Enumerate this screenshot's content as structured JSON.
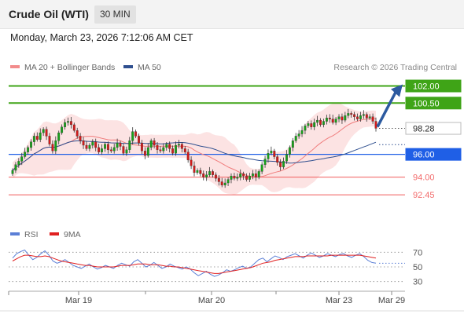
{
  "header": {
    "instrument": "Crude Oil (WTI)",
    "timeframe": "30 MIN"
  },
  "datetime": "Monday, March 23, 2026 7:12:06 AM CET",
  "legend": {
    "bollinger_label": "MA 20 + Bollinger Bands",
    "bollinger_color": "#f28c8c",
    "ma50_label": "MA 50",
    "ma50_color": "#2f4f8f",
    "rsi_label": "RSI",
    "rsi_color": "#5b7fd6",
    "rsi_ma_label": "9MA",
    "rsi_ma_color": "#e02020"
  },
  "credit": "Research © 2026 Trading Central",
  "chart_data": {
    "type": "candlestick",
    "x_ticks": [
      "Mar 19",
      "Mar 20",
      "Mar 23",
      "Mar 29"
    ],
    "y_range": [
      91.5,
      103.0
    ],
    "levels": [
      {
        "value": 102.0,
        "label": "102.00",
        "color": "#3fa417",
        "kind": "resistance"
      },
      {
        "value": 100.5,
        "label": "100.50",
        "color": "#3fa417",
        "kind": "resistance"
      },
      {
        "value": 98.28,
        "label": "98.28",
        "color": "#555555",
        "kind": "last"
      },
      {
        "value": 96.0,
        "label": "96.00",
        "color": "#1f5fe6",
        "kind": "pivot"
      },
      {
        "value": 94.0,
        "label": "94.00",
        "color": "#f26b6b",
        "kind": "support"
      },
      {
        "value": 92.45,
        "label": "92.45",
        "color": "#f26b6b",
        "kind": "support"
      }
    ],
    "arrow_target": 102.0,
    "closes": [
      94.6,
      95.1,
      95.4,
      95.8,
      96.2,
      96.6,
      97.1,
      97.6,
      97.3,
      97.9,
      98.2,
      97.6,
      96.9,
      96.3,
      97.2,
      97.9,
      98.4,
      98.8,
      98.9,
      98.6,
      98.1,
      97.6,
      97.2,
      96.8,
      96.5,
      96.8,
      97.1,
      96.6,
      96.2,
      96.5,
      96.9,
      96.4,
      96.3,
      96.6,
      97.0,
      96.7,
      96.1,
      96.4,
      97.2,
      98.0,
      97.6,
      97.0,
      96.3,
      95.9,
      96.6,
      97.2,
      96.8,
      96.4,
      96.3,
      96.6,
      96.9,
      96.5,
      96.1,
      96.8,
      96.9,
      96.5,
      96.2,
      95.5,
      95.0,
      94.4,
      94.6,
      94.3,
      94.0,
      94.2,
      94.5,
      94.2,
      93.9,
      93.6,
      93.3,
      93.5,
      93.8,
      94.1,
      93.9,
      94.0,
      94.3,
      94.1,
      93.8,
      94.1,
      94.3,
      94.0,
      94.5,
      95.1,
      95.6,
      96.1,
      96.3,
      95.8,
      95.3,
      94.9,
      95.4,
      96.0,
      96.6,
      97.2,
      97.6,
      97.8,
      98.1,
      98.5,
      98.7,
      98.4,
      98.8,
      99.0,
      98.6,
      98.9,
      99.2,
      99.1,
      98.8,
      99.1,
      99.3,
      99.0,
      99.4,
      99.6,
      99.5,
      99.3,
      99.1,
      99.4,
      99.5,
      99.2,
      99.3,
      98.9,
      98.28
    ],
    "rsi": {
      "levels": [
        70,
        50,
        30
      ],
      "rsi_values": [
        62,
        68,
        71,
        73,
        66,
        60,
        63,
        68,
        72,
        66,
        58,
        55,
        57,
        60,
        56,
        52,
        50,
        48,
        51,
        54,
        50,
        47,
        49,
        52,
        50,
        48,
        52,
        55,
        53,
        51,
        57,
        60,
        55,
        50,
        52,
        56,
        52,
        48,
        50,
        54,
        51,
        49,
        47,
        50,
        47,
        42,
        38,
        41,
        44,
        40,
        37,
        39,
        42,
        46,
        44,
        46,
        49,
        51,
        48,
        50,
        55,
        60,
        62,
        57,
        61,
        65,
        63,
        60,
        64,
        66,
        68,
        65,
        62,
        66,
        69,
        66,
        63,
        65,
        68,
        66,
        64,
        67,
        68,
        65,
        63,
        66,
        68,
        64,
        59,
        56,
        55
      ],
      "ma_values": [
        58,
        61,
        64,
        66,
        66,
        65,
        64,
        64,
        65,
        64,
        62,
        60,
        58,
        57,
        56,
        55,
        54,
        53,
        52,
        52,
        51,
        50,
        50,
        50,
        50,
        50,
        51,
        52,
        52,
        52,
        53,
        54,
        54,
        54,
        53,
        53,
        53,
        52,
        51,
        51,
        50,
        50,
        49,
        48,
        47,
        46,
        45,
        44,
        43,
        42,
        41,
        41,
        42,
        43,
        44,
        45,
        46,
        47,
        48,
        49,
        51,
        53,
        55,
        56,
        57,
        59,
        60,
        61,
        62,
        63,
        64,
        64,
        64,
        65,
        65,
        65,
        65,
        65,
        65,
        66,
        66,
        66,
        66,
        66,
        66,
        66,
        66,
        65,
        64,
        63,
        62
      ]
    }
  }
}
